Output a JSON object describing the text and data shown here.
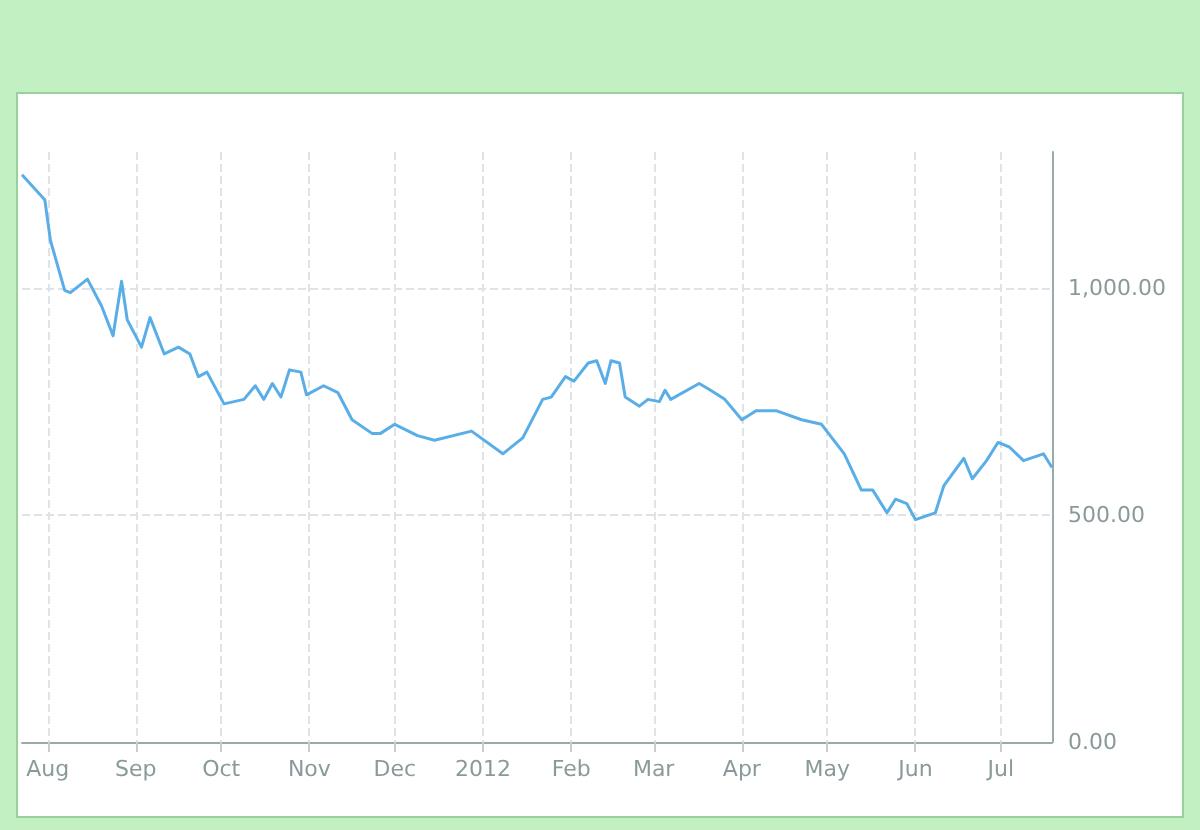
{
  "chart_data": {
    "type": "line",
    "x": [
      "2011-07-23",
      "2011-07-31",
      "2011-08-02",
      "2011-08-07",
      "2011-08-09",
      "2011-08-15",
      "2011-08-20",
      "2011-08-24",
      "2011-08-27",
      "2011-08-29",
      "2011-09-03",
      "2011-09-06",
      "2011-09-11",
      "2011-09-16",
      "2011-09-20",
      "2011-09-23",
      "2011-09-26",
      "2011-10-02",
      "2011-10-09",
      "2011-10-13",
      "2011-10-16",
      "2011-10-19",
      "2011-10-22",
      "2011-10-25",
      "2011-10-29",
      "2011-10-31",
      "2011-11-06",
      "2011-11-11",
      "2011-11-16",
      "2011-11-23",
      "2011-11-26",
      "2011-12-01",
      "2011-12-09",
      "2011-12-15",
      "2011-12-28",
      "2012-01-08",
      "2012-01-15",
      "2012-01-22",
      "2012-01-25",
      "2012-01-30",
      "2012-02-02",
      "2012-02-07",
      "2012-02-10",
      "2012-02-13",
      "2012-02-15",
      "2012-02-18",
      "2012-02-20",
      "2012-02-25",
      "2012-02-28",
      "2012-03-03",
      "2012-03-05",
      "2012-03-07",
      "2012-03-17",
      "2012-03-21",
      "2012-03-26",
      "2012-04-01",
      "2012-04-06",
      "2012-04-13",
      "2012-04-22",
      "2012-04-29",
      "2012-05-07",
      "2012-05-13",
      "2012-05-17",
      "2012-05-22",
      "2012-05-25",
      "2012-05-29",
      "2012-06-01",
      "2012-06-08",
      "2012-06-11",
      "2012-06-18",
      "2012-06-21",
      "2012-06-26",
      "2012-06-30",
      "2012-07-04",
      "2012-07-09",
      "2012-07-16",
      "2012-07-19"
    ],
    "series": [
      {
        "color": "#5aaee8",
        "values": [
          1250,
          1195,
          1105,
          995,
          990,
          1020,
          960,
          895,
          1015,
          930,
          870,
          935,
          855,
          870,
          855,
          805,
          815,
          745,
          755,
          785,
          755,
          790,
          760,
          820,
          815,
          765,
          785,
          770,
          710,
          680,
          680,
          700,
          675,
          665,
          685,
          635,
          670,
          755,
          760,
          805,
          795,
          835,
          840,
          790,
          840,
          835,
          760,
          740,
          755,
          750,
          775,
          755,
          790,
          775,
          755,
          710,
          730,
          730,
          710,
          700,
          635,
          555,
          555,
          505,
          535,
          525,
          490,
          505,
          565,
          625,
          580,
          620,
          660,
          650,
          620,
          635,
          605
        ]
      }
    ],
    "xlim": [
      "2011-07-23",
      "2012-07-19"
    ],
    "xticks": [
      {
        "value": "2011-08-01",
        "label": "Aug"
      },
      {
        "value": "2011-09-01",
        "label": "Sep"
      },
      {
        "value": "2011-10-01",
        "label": "Oct"
      },
      {
        "value": "2011-11-01",
        "label": "Nov"
      },
      {
        "value": "2011-12-01",
        "label": "Dec"
      },
      {
        "value": "2012-01-01",
        "label": "2012"
      },
      {
        "value": "2012-02-01",
        "label": "Feb"
      },
      {
        "value": "2012-03-01",
        "label": "Mar"
      },
      {
        "value": "2012-04-01",
        "label": "Apr"
      },
      {
        "value": "2012-05-01",
        "label": "May"
      },
      {
        "value": "2012-06-01",
        "label": "Jun"
      },
      {
        "value": "2012-07-01",
        "label": "Jul"
      }
    ],
    "ylim": [
      0,
      1300
    ],
    "yticks": [
      {
        "value": 0,
        "label": "0.00"
      },
      {
        "value": 500,
        "label": "500.00"
      },
      {
        "value": 1000,
        "label": "1,000.00"
      }
    ],
    "grid": true,
    "marker": "none",
    "line_style": "solid"
  }
}
